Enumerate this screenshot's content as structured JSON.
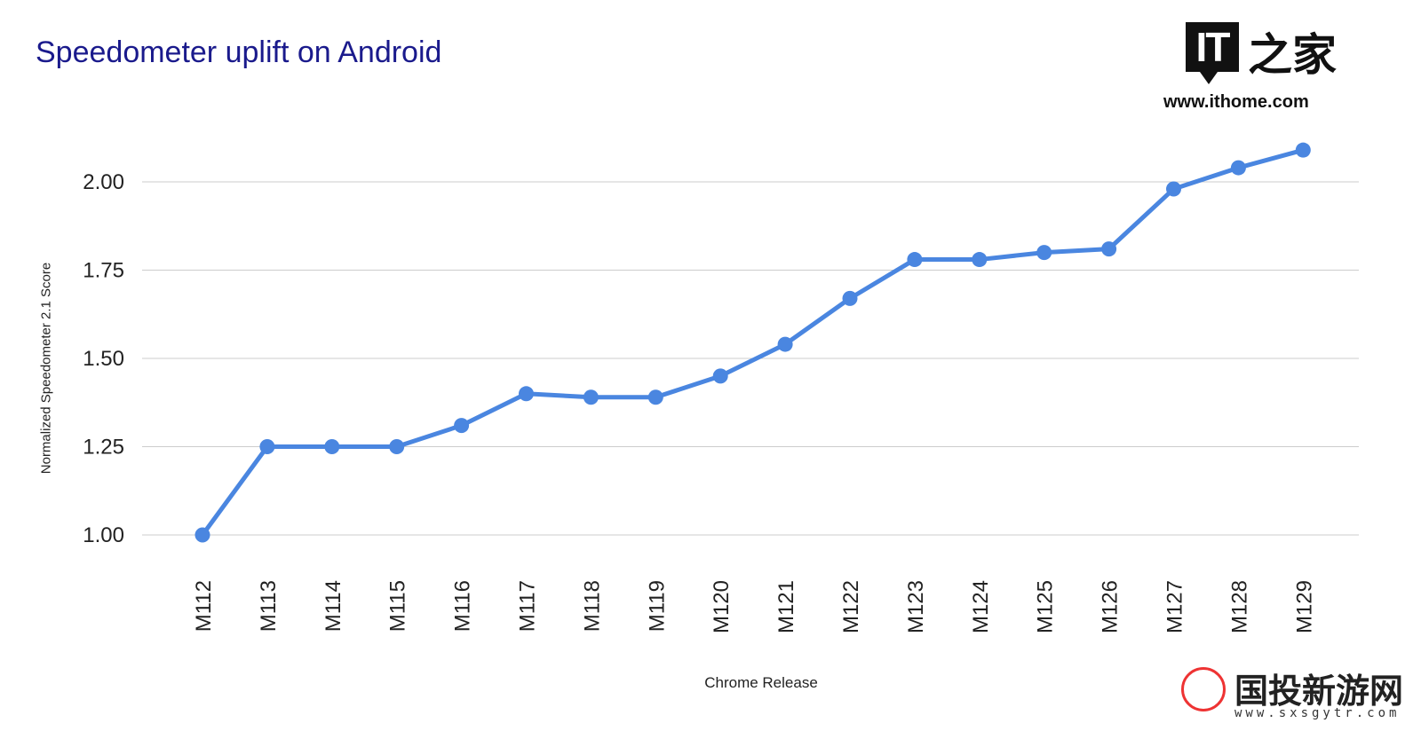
{
  "chart_data": {
    "type": "line",
    "title": "Speedometer uplift on Android",
    "xlabel": "Chrome Release",
    "ylabel": "Normalized Speedometer 2.1 Score",
    "categories": [
      "M112",
      "M113",
      "M114",
      "M115",
      "M116",
      "M117",
      "M118",
      "M119",
      "M120",
      "M121",
      "M122",
      "M123",
      "M124",
      "M125",
      "M126",
      "M127",
      "M128",
      "M129"
    ],
    "series": [
      {
        "values": [
          1.0,
          1.25,
          1.25,
          1.25,
          1.31,
          1.4,
          1.39,
          1.39,
          1.45,
          1.54,
          1.67,
          1.78,
          1.78,
          1.8,
          1.81,
          1.98,
          2.04,
          2.09
        ]
      }
    ],
    "yticks": [
      "1.00",
      "1.25",
      "1.50",
      "1.75",
      "2.00"
    ],
    "ylim": [
      1.0,
      2.0
    ],
    "grid": true,
    "color": "#4a86e0"
  },
  "watermark": {
    "logo_it": "IT",
    "logo_cn": "之家",
    "logo_url": "www.ithome.com",
    "site_cn": "国投新游网",
    "site_url": "www.sxsgytr.com"
  }
}
